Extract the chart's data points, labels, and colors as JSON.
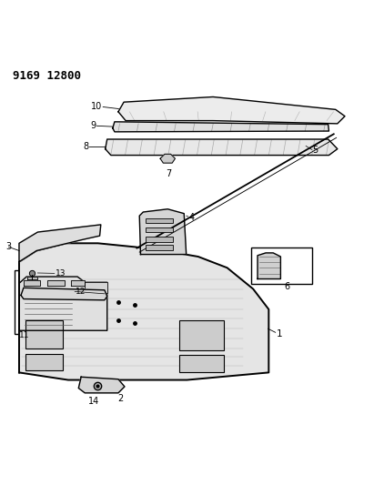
{
  "title": "9169 12800",
  "background_color": "#ffffff",
  "line_color": "#000000",
  "fig_width": 4.11,
  "fig_height": 5.33,
  "dpi": 100
}
